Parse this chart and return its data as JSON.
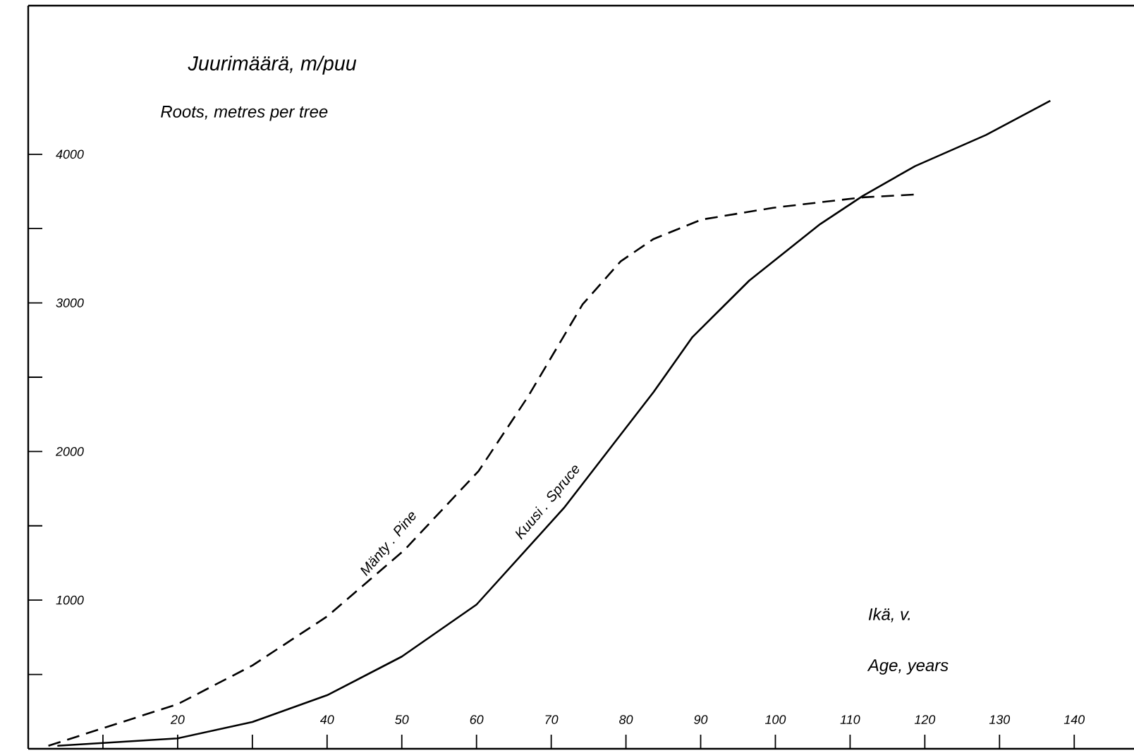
{
  "chart_data": {
    "type": "line",
    "title": "Juurimäärä, m/puu",
    "subtitle": "Roots, metres per tree",
    "xlabel": "Ikä, v.",
    "annotations": [
      "Age, years"
    ],
    "xlim": [
      0,
      148
    ],
    "ylim": [
      0,
      5000
    ],
    "xticks": [
      {
        "value": 10,
        "label": null
      },
      20,
      {
        "value": 30,
        "label": null
      },
      40,
      50,
      60,
      70,
      80,
      90,
      100,
      110,
      120,
      130,
      140
    ],
    "yticks": [
      {
        "value": 500,
        "label": null
      },
      1000,
      {
        "value": 1500,
        "label": null
      },
      2000,
      {
        "value": 2500,
        "label": null
      },
      3000,
      {
        "value": 3500,
        "label": null
      },
      4000
    ],
    "legend": false,
    "grid": false,
    "marker": "none",
    "series": [
      {
        "name": "Mänty . Pine",
        "color": "#000000",
        "line_style": "dashed",
        "x": [
          2.7,
          20,
          30,
          40,
          50.4,
          60.3,
          66.9,
          74.2,
          79.3,
          83.7,
          90.1,
          99.7,
          111.7,
          119
        ],
        "values": [
          20,
          300,
          560,
          890,
          1340,
          1870,
          2370,
          2990,
          3280,
          3430,
          3560,
          3640,
          3710,
          3730
        ]
      },
      {
        "name": "Kuusi . Spruce",
        "color": "#000000",
        "line_style": "solid",
        "x": [
          3.9,
          20,
          30,
          40,
          50,
          60,
          71.7,
          83.7,
          88.9,
          96.5,
          106,
          111.7,
          118.7,
          128.2,
          136.8
        ],
        "values": [
          20,
          70,
          180,
          360,
          620,
          970,
          1620,
          2400,
          2770,
          3150,
          3530,
          3720,
          3920,
          4130,
          4360
        ]
      }
    ]
  }
}
